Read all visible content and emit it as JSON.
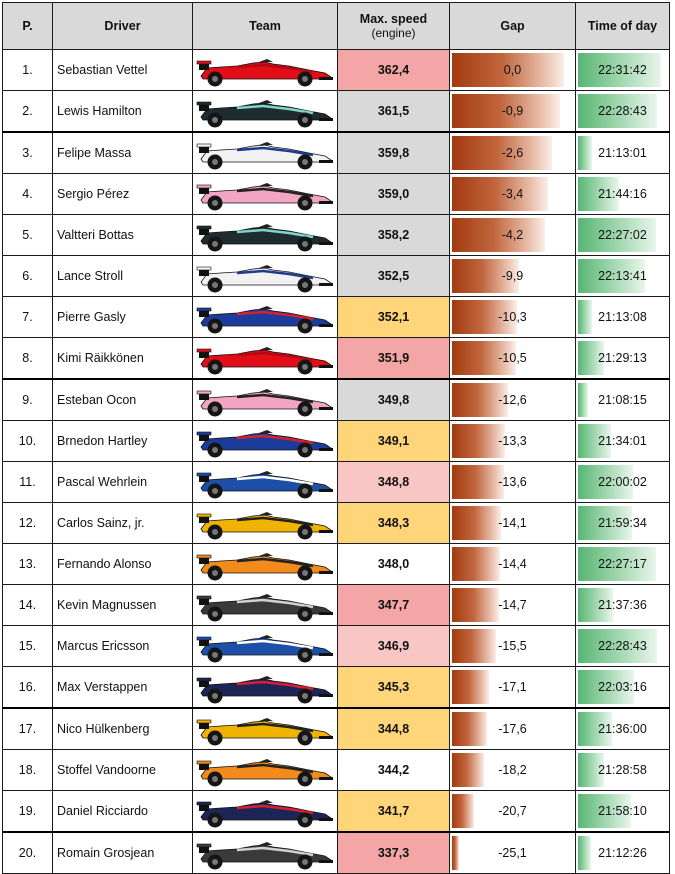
{
  "headers": {
    "pos": "P.",
    "driver": "Driver",
    "team": "Team",
    "speed": "Max. speed",
    "speed_sub": "(engine)",
    "gap": "Gap",
    "time": "Time of day"
  },
  "colors": {
    "ferrari": "#e30d17",
    "mercedes": "#1e2b30",
    "williams": "#f2f2f2",
    "force_india": "#f2a6c4",
    "toro_rosso": "#1b3c9b",
    "sauber": "#1d4fa8",
    "renault": "#f0b400",
    "mclaren": "#f28a1c",
    "haas": "#3a3a3a",
    "red_bull": "#1d2556",
    "speed_ferrari": "#f4a6a6",
    "speed_mercedes": "#d9d9d9",
    "speed_honda": "#ffd57a",
    "speed_renault": "#ffffff",
    "speed_sauber": "#f9c6c6"
  },
  "rows": [
    {
      "pos": "1.",
      "driver": "Sebastian Vettel",
      "team_icon": "ferrari-car-icon",
      "speed": "362,4",
      "gap": "0,0",
      "time": "22:31:42",
      "gap_fill": 1.0,
      "time_fill": 0.94,
      "speed_color": "#f4a6a6",
      "car": "ferrari"
    },
    {
      "pos": "2.",
      "driver": "Lewis Hamilton",
      "team_icon": "mercedes-car-icon",
      "speed": "361,5",
      "gap": "-0,9",
      "time": "22:28:43",
      "gap_fill": 0.96,
      "time_fill": 0.9,
      "speed_color": "#d9d9d9",
      "car": "mercedes"
    },
    {
      "pos": "3.",
      "driver": "Felipe Massa",
      "team_icon": "williams-car-icon",
      "speed": "359,8",
      "gap": "-2,6",
      "time": "21:13:01",
      "gap_fill": 0.89,
      "time_fill": 0.16,
      "speed_color": "#d9d9d9",
      "car": "williams"
    },
    {
      "pos": "4.",
      "driver": "Sergio Pérez",
      "team_icon": "force-india-car-icon",
      "speed": "359,0",
      "gap": "-3,4",
      "time": "21:44:16",
      "gap_fill": 0.86,
      "time_fill": 0.47,
      "speed_color": "#d9d9d9",
      "car": "force_india"
    },
    {
      "pos": "5.",
      "driver": "Valtteri Bottas",
      "team_icon": "mercedes-car-icon",
      "speed": "358,2",
      "gap": "-4,2",
      "time": "22:27:02",
      "gap_fill": 0.83,
      "time_fill": 0.89,
      "speed_color": "#d9d9d9",
      "car": "mercedes"
    },
    {
      "pos": "6.",
      "driver": "Lance Stroll",
      "team_icon": "williams-car-icon",
      "speed": "352,5",
      "gap": "-9,9",
      "time": "22:13:41",
      "gap_fill": 0.6,
      "time_fill": 0.76,
      "speed_color": "#d9d9d9",
      "car": "williams"
    },
    {
      "pos": "7.",
      "driver": "Pierre Gasly",
      "team_icon": "toro-rosso-car-icon",
      "speed": "352,1",
      "gap": "-10,3",
      "time": "21:13:08",
      "gap_fill": 0.58,
      "time_fill": 0.16,
      "speed_color": "#ffd57a",
      "car": "toro_rosso"
    },
    {
      "pos": "8.",
      "driver": "Kimi Räikkönen",
      "team_icon": "ferrari-car-icon",
      "speed": "351,9",
      "gap": "-10,5",
      "time": "21:29:13",
      "gap_fill": 0.57,
      "time_fill": 0.3,
      "speed_color": "#f4a6a6",
      "car": "ferrari"
    },
    {
      "pos": "9.",
      "driver": "Esteban Ocon",
      "team_icon": "force-india-car-icon",
      "speed": "349,8",
      "gap": "-12,6",
      "time": "21:08:15",
      "gap_fill": 0.5,
      "time_fill": 0.11,
      "speed_color": "#d9d9d9",
      "car": "force_india"
    },
    {
      "pos": "10.",
      "driver": "Brnedon Hartley",
      "team_icon": "toro-rosso-car-icon",
      "speed": "349,1",
      "gap": "-13,3",
      "time": "21:34:01",
      "gap_fill": 0.47,
      "time_fill": 0.37,
      "speed_color": "#ffd57a",
      "car": "toro_rosso"
    },
    {
      "pos": "11.",
      "driver": "Pascal Wehrlein",
      "team_icon": "sauber-car-icon",
      "speed": "348,8",
      "gap": "-13,6",
      "time": "22:00:02",
      "gap_fill": 0.46,
      "time_fill": 0.62,
      "speed_color": "#f9c6c6",
      "car": "sauber"
    },
    {
      "pos": "12.",
      "driver": "Carlos Sainz, jr.",
      "team_icon": "renault-car-icon",
      "speed": "348,3",
      "gap": "-14,1",
      "time": "21:59:34",
      "gap_fill": 0.44,
      "time_fill": 0.61,
      "speed_color": "#ffd57a",
      "car": "renault"
    },
    {
      "pos": "13.",
      "driver": "Fernando Alonso",
      "team_icon": "mclaren-car-icon",
      "speed": "348,0",
      "gap": "-14,4",
      "time": "22:27:17",
      "gap_fill": 0.43,
      "time_fill": 0.89,
      "speed_color": "#ffffff",
      "car": "mclaren"
    },
    {
      "pos": "14.",
      "driver": "Kevin Magnussen",
      "team_icon": "haas-car-icon",
      "speed": "347,7",
      "gap": "-14,7",
      "time": "21:37:36",
      "gap_fill": 0.42,
      "time_fill": 0.4,
      "speed_color": "#f4a6a6",
      "car": "haas"
    },
    {
      "pos": "15.",
      "driver": "Marcus Ericsson",
      "team_icon": "sauber-car-icon",
      "speed": "346,9",
      "gap": "-15,5",
      "time": "22:28:43",
      "gap_fill": 0.39,
      "time_fill": 0.9,
      "speed_color": "#f9c6c6",
      "car": "sauber"
    },
    {
      "pos": "16.",
      "driver": "Max Verstappen",
      "team_icon": "red-bull-car-icon",
      "speed": "345,3",
      "gap": "-17,1",
      "time": "22:03:16",
      "gap_fill": 0.33,
      "time_fill": 0.64,
      "speed_color": "#ffd57a",
      "car": "red_bull"
    },
    {
      "pos": "17.",
      "driver": "Nico Hülkenberg",
      "team_icon": "renault-car-icon",
      "speed": "344,8",
      "gap": "-17,6",
      "time": "21:36:00",
      "gap_fill": 0.31,
      "time_fill": 0.39,
      "speed_color": "#ffd57a",
      "car": "renault"
    },
    {
      "pos": "18.",
      "driver": "Stoffel Vandoorne",
      "team_icon": "mclaren-car-icon",
      "speed": "344,2",
      "gap": "-18,2",
      "time": "21:28:58",
      "gap_fill": 0.29,
      "time_fill": 0.3,
      "speed_color": "#ffffff",
      "car": "mclaren"
    },
    {
      "pos": "19.",
      "driver": "Daniel Ricciardo",
      "team_icon": "red-bull-car-icon",
      "speed": "341,7",
      "gap": "-20,7",
      "time": "21:58:10",
      "gap_fill": 0.2,
      "time_fill": 0.6,
      "speed_color": "#ffd57a",
      "car": "red_bull"
    },
    {
      "pos": "20.",
      "driver": "Romain Grosjean",
      "team_icon": "haas-car-icon",
      "speed": "337,3",
      "gap": "-25,1",
      "time": "21:12:26",
      "gap_fill": 0.06,
      "time_fill": 0.15,
      "speed_color": "#f4a6a6",
      "car": "haas"
    }
  ]
}
